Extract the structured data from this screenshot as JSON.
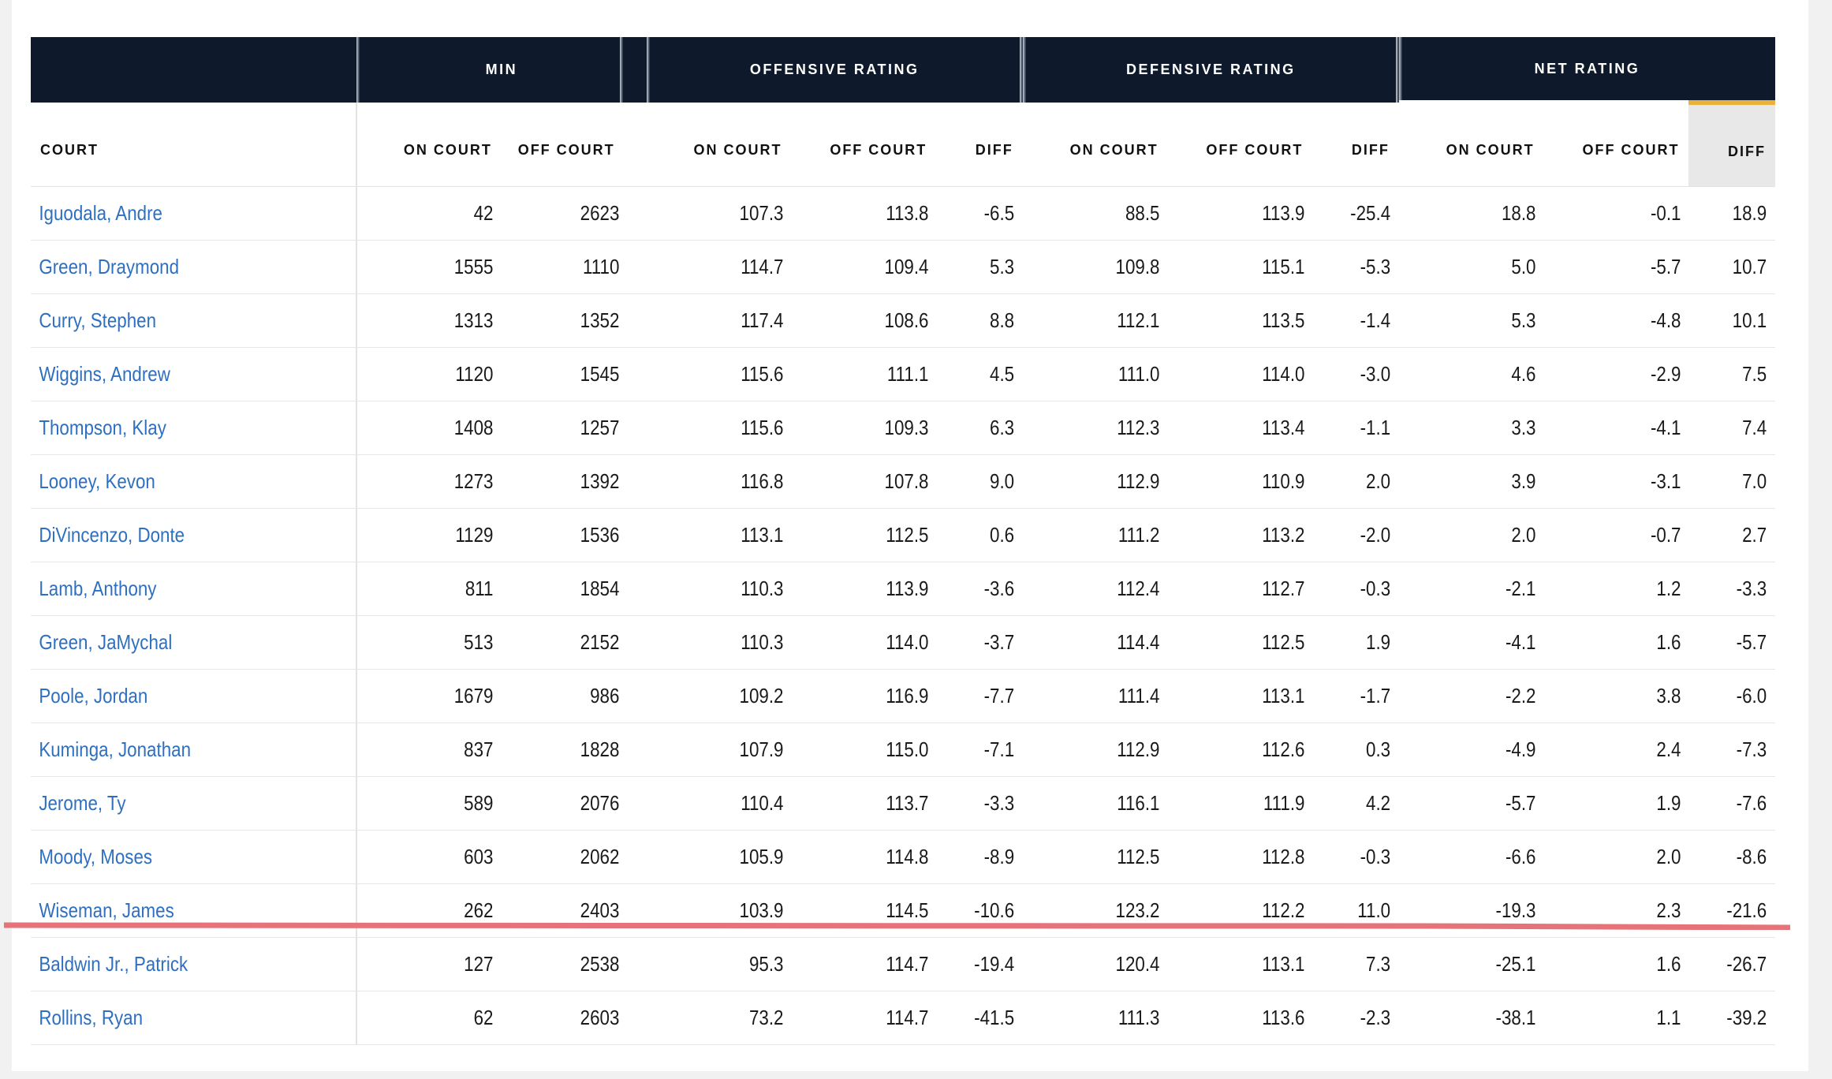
{
  "groups": {
    "min": "MIN",
    "offensive": "OFFENSIVE RATING",
    "defensive": "DEFENSIVE RATING",
    "net": "NET RATING"
  },
  "columns": {
    "court": "COURT",
    "on_court": "ON COURT",
    "off_court": "OFF COURT",
    "diff": "DIFF"
  },
  "sorted_column": "net.diff",
  "annotation_color": "#e57379",
  "header_bg": "#0e1a2b",
  "sort_accent": "#e9b23e",
  "link_color": "#2f6fc0",
  "players": [
    {
      "name": "Iguodala, Andre",
      "min_on": "42",
      "min_off": "2623",
      "off_on": "107.3",
      "off_off": "113.8",
      "off_diff": "-6.5",
      "def_on": "88.5",
      "def_off": "113.9",
      "def_diff": "-25.4",
      "net_on": "18.8",
      "net_off": "-0.1",
      "net_diff": "18.9"
    },
    {
      "name": "Green, Draymond",
      "min_on": "1555",
      "min_off": "1110",
      "off_on": "114.7",
      "off_off": "109.4",
      "off_diff": "5.3",
      "def_on": "109.8",
      "def_off": "115.1",
      "def_diff": "-5.3",
      "net_on": "5.0",
      "net_off": "-5.7",
      "net_diff": "10.7"
    },
    {
      "name": "Curry, Stephen",
      "min_on": "1313",
      "min_off": "1352",
      "off_on": "117.4",
      "off_off": "108.6",
      "off_diff": "8.8",
      "def_on": "112.1",
      "def_off": "113.5",
      "def_diff": "-1.4",
      "net_on": "5.3",
      "net_off": "-4.8",
      "net_diff": "10.1"
    },
    {
      "name": "Wiggins, Andrew",
      "min_on": "1120",
      "min_off": "1545",
      "off_on": "115.6",
      "off_off": "111.1",
      "off_diff": "4.5",
      "def_on": "111.0",
      "def_off": "114.0",
      "def_diff": "-3.0",
      "net_on": "4.6",
      "net_off": "-2.9",
      "net_diff": "7.5"
    },
    {
      "name": "Thompson, Klay",
      "min_on": "1408",
      "min_off": "1257",
      "off_on": "115.6",
      "off_off": "109.3",
      "off_diff": "6.3",
      "def_on": "112.3",
      "def_off": "113.4",
      "def_diff": "-1.1",
      "net_on": "3.3",
      "net_off": "-4.1",
      "net_diff": "7.4"
    },
    {
      "name": "Looney, Kevon",
      "min_on": "1273",
      "min_off": "1392",
      "off_on": "116.8",
      "off_off": "107.8",
      "off_diff": "9.0",
      "def_on": "112.9",
      "def_off": "110.9",
      "def_diff": "2.0",
      "net_on": "3.9",
      "net_off": "-3.1",
      "net_diff": "7.0"
    },
    {
      "name": "DiVincenzo, Donte",
      "min_on": "1129",
      "min_off": "1536",
      "off_on": "113.1",
      "off_off": "112.5",
      "off_diff": "0.6",
      "def_on": "111.2",
      "def_off": "113.2",
      "def_diff": "-2.0",
      "net_on": "2.0",
      "net_off": "-0.7",
      "net_diff": "2.7"
    },
    {
      "name": "Lamb, Anthony",
      "min_on": "811",
      "min_off": "1854",
      "off_on": "110.3",
      "off_off": "113.9",
      "off_diff": "-3.6",
      "def_on": "112.4",
      "def_off": "112.7",
      "def_diff": "-0.3",
      "net_on": "-2.1",
      "net_off": "1.2",
      "net_diff": "-3.3"
    },
    {
      "name": "Green, JaMychal",
      "min_on": "513",
      "min_off": "2152",
      "off_on": "110.3",
      "off_off": "114.0",
      "off_diff": "-3.7",
      "def_on": "114.4",
      "def_off": "112.5",
      "def_diff": "1.9",
      "net_on": "-4.1",
      "net_off": "1.6",
      "net_diff": "-5.7"
    },
    {
      "name": "Poole, Jordan",
      "min_on": "1679",
      "min_off": "986",
      "off_on": "109.2",
      "off_off": "116.9",
      "off_diff": "-7.7",
      "def_on": "111.4",
      "def_off": "113.1",
      "def_diff": "-1.7",
      "net_on": "-2.2",
      "net_off": "3.8",
      "net_diff": "-6.0"
    },
    {
      "name": "Kuminga, Jonathan",
      "min_on": "837",
      "min_off": "1828",
      "off_on": "107.9",
      "off_off": "115.0",
      "off_diff": "-7.1",
      "def_on": "112.9",
      "def_off": "112.6",
      "def_diff": "0.3",
      "net_on": "-4.9",
      "net_off": "2.4",
      "net_diff": "-7.3"
    },
    {
      "name": "Jerome, Ty",
      "min_on": "589",
      "min_off": "2076",
      "off_on": "110.4",
      "off_off": "113.7",
      "off_diff": "-3.3",
      "def_on": "116.1",
      "def_off": "111.9",
      "def_diff": "4.2",
      "net_on": "-5.7",
      "net_off": "1.9",
      "net_diff": "-7.6"
    },
    {
      "name": "Moody, Moses",
      "min_on": "603",
      "min_off": "2062",
      "off_on": "105.9",
      "off_off": "114.8",
      "off_diff": "-8.9",
      "def_on": "112.5",
      "def_off": "112.8",
      "def_diff": "-0.3",
      "net_on": "-6.6",
      "net_off": "2.0",
      "net_diff": "-8.6"
    },
    {
      "name": "Wiseman, James",
      "min_on": "262",
      "min_off": "2403",
      "off_on": "103.9",
      "off_off": "114.5",
      "off_diff": "-10.6",
      "def_on": "123.2",
      "def_off": "112.2",
      "def_diff": "11.0",
      "net_on": "-19.3",
      "net_off": "2.3",
      "net_diff": "-21.6"
    },
    {
      "name": "Baldwin Jr., Patrick",
      "min_on": "127",
      "min_off": "2538",
      "off_on": "95.3",
      "off_off": "114.7",
      "off_diff": "-19.4",
      "def_on": "120.4",
      "def_off": "113.1",
      "def_diff": "7.3",
      "net_on": "-25.1",
      "net_off": "1.6",
      "net_diff": "-26.7"
    },
    {
      "name": "Rollins, Ryan",
      "min_on": "62",
      "min_off": "2603",
      "off_on": "73.2",
      "off_off": "114.7",
      "off_diff": "-41.5",
      "def_on": "111.3",
      "def_off": "113.6",
      "def_diff": "-2.3",
      "net_on": "-38.1",
      "net_off": "1.1",
      "net_diff": "-39.2"
    }
  ]
}
